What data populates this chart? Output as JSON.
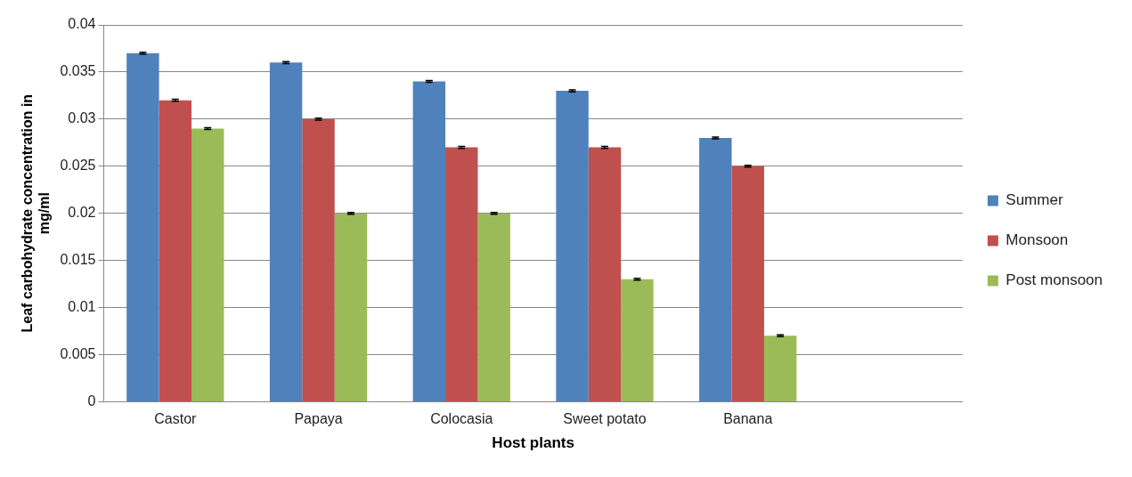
{
  "chart_data": {
    "type": "bar",
    "xlabel": "Host plants",
    "ylabel": "Leaf carbohydrate concentration in mg/ml",
    "categories": [
      "Castor",
      "Papaya",
      "Colocasia",
      "Sweet potato",
      "Banana",
      null
    ],
    "series": [
      {
        "name": "Summer",
        "color": "#4f81bd",
        "values": [
          0.037,
          0.036,
          0.034,
          0.033,
          0.028,
          null
        ],
        "errors": [
          0.0001,
          0.0001,
          0.0001,
          0.0001,
          0.0001,
          null
        ]
      },
      {
        "name": "Monsoon",
        "color": "#c0504d",
        "values": [
          0.032,
          0.03,
          0.027,
          0.027,
          0.025,
          null
        ],
        "errors": [
          0.0001,
          0.0001,
          0.0001,
          0.0001,
          0.0001,
          null
        ]
      },
      {
        "name": "Post monsoon",
        "color": "#9bbb59",
        "values": [
          0.029,
          0.02,
          0.02,
          0.013,
          0.007,
          null
        ],
        "errors": [
          0.0001,
          0.0001,
          0.0001,
          0.0001,
          0.0001,
          null
        ]
      }
    ],
    "ylim": [
      0,
      0.04
    ],
    "yticks": [
      0,
      0.005,
      0.01,
      0.015,
      0.02,
      0.025,
      0.03,
      0.035,
      0.04
    ],
    "grid": "y",
    "legend": "right"
  }
}
